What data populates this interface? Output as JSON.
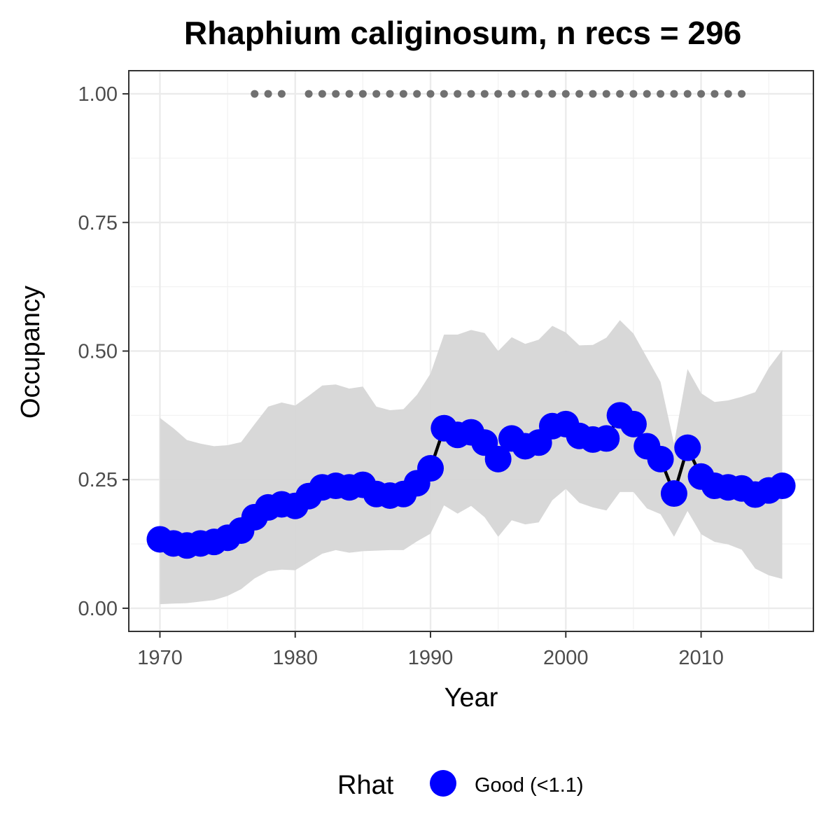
{
  "chart_data": {
    "type": "line",
    "title": "Rhaphium caliginosum, n recs = 296",
    "xlabel": "Year",
    "ylabel": "Occupancy",
    "xlim": [
      1967.7,
      2018.3
    ],
    "ylim": [
      -0.045,
      1.045
    ],
    "x_ticks": [
      1970,
      1980,
      1990,
      2000,
      2010
    ],
    "x_tick_labels": [
      "1970",
      "1980",
      "1990",
      "2000",
      "2010"
    ],
    "y_ticks": [
      0,
      0.25,
      0.5,
      0.75,
      1.0
    ],
    "y_tick_labels": [
      "0.00",
      "0.25",
      "0.50",
      "0.75",
      "1.00"
    ],
    "grid": true,
    "legend": {
      "placement": "bottom",
      "title": "Rhat",
      "items": [
        {
          "label": "Good (<1.1)",
          "color": "#0000ff"
        }
      ]
    },
    "colors": {
      "points": "#0000ff",
      "line": "#000000",
      "ribbon": "#d6d6d6",
      "record_dots": "#707070"
    },
    "x": [
      1970,
      1971,
      1972,
      1973,
      1974,
      1975,
      1976,
      1977,
      1978,
      1979,
      1980,
      1981,
      1982,
      1983,
      1984,
      1985,
      1986,
      1987,
      1988,
      1989,
      1990,
      1991,
      1992,
      1993,
      1994,
      1995,
      1996,
      1997,
      1998,
      1999,
      2000,
      2001,
      2002,
      2003,
      2004,
      2005,
      2006,
      2007,
      2008,
      2009,
      2010,
      2011,
      2012,
      2013,
      2014,
      2015,
      2016
    ],
    "series": [
      {
        "name": "Good (<1.1)",
        "values": [
          0.134,
          0.126,
          0.122,
          0.126,
          0.129,
          0.137,
          0.151,
          0.177,
          0.196,
          0.202,
          0.199,
          0.218,
          0.235,
          0.238,
          0.235,
          0.24,
          0.222,
          0.219,
          0.222,
          0.243,
          0.272,
          0.35,
          0.337,
          0.342,
          0.322,
          0.29,
          0.33,
          0.315,
          0.322,
          0.354,
          0.358,
          0.335,
          0.328,
          0.33,
          0.375,
          0.358,
          0.315,
          0.29,
          0.223,
          0.312,
          0.256,
          0.238,
          0.235,
          0.233,
          0.221,
          0.229,
          0.238
        ],
        "lower": [
          0.008,
          0.009,
          0.01,
          0.013,
          0.016,
          0.024,
          0.037,
          0.058,
          0.072,
          0.075,
          0.074,
          0.09,
          0.106,
          0.113,
          0.108,
          0.111,
          0.112,
          0.113,
          0.113,
          0.13,
          0.145,
          0.2,
          0.184,
          0.199,
          0.177,
          0.139,
          0.171,
          0.163,
          0.167,
          0.21,
          0.232,
          0.205,
          0.196,
          0.19,
          0.226,
          0.226,
          0.194,
          0.183,
          0.139,
          0.189,
          0.144,
          0.129,
          0.124,
          0.114,
          0.077,
          0.064,
          0.057
        ],
        "upper": [
          0.37,
          0.35,
          0.327,
          0.32,
          0.315,
          0.317,
          0.323,
          0.358,
          0.392,
          0.4,
          0.394,
          0.413,
          0.433,
          0.435,
          0.427,
          0.431,
          0.392,
          0.385,
          0.387,
          0.415,
          0.456,
          0.532,
          0.532,
          0.541,
          0.535,
          0.5,
          0.527,
          0.514,
          0.522,
          0.549,
          0.536,
          0.511,
          0.512,
          0.526,
          0.56,
          0.534,
          0.487,
          0.44,
          0.32,
          0.465,
          0.418,
          0.401,
          0.404,
          0.411,
          0.42,
          0.467,
          0.502
        ]
      }
    ],
    "record_years": [
      1977,
      1978,
      1979,
      1981,
      1982,
      1983,
      1984,
      1985,
      1986,
      1987,
      1988,
      1989,
      1990,
      1991,
      1992,
      1993,
      1994,
      1995,
      1996,
      1997,
      1998,
      1999,
      2000,
      2001,
      2002,
      2003,
      2004,
      2005,
      2006,
      2007,
      2008,
      2009,
      2010,
      2011,
      2012,
      2013
    ],
    "record_level": 1.0
  }
}
